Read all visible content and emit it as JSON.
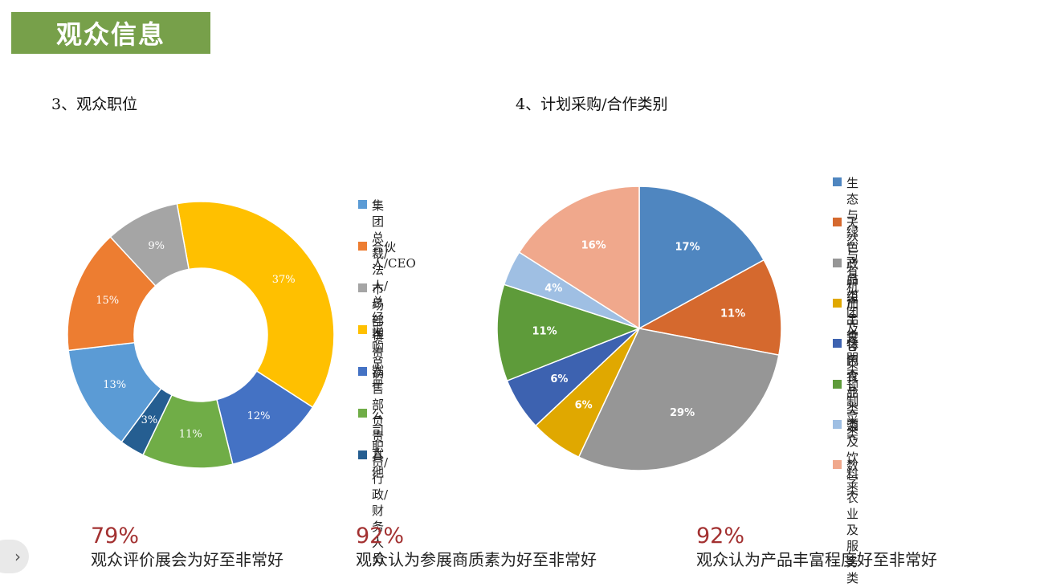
{
  "header": {
    "title": "观众信息"
  },
  "sections": {
    "left_title": "3、观众职位",
    "right_title": "4、计划采购/合作类别"
  },
  "chart_data": [
    {
      "type": "donut",
      "title": "3、观众职位",
      "categories": [
        "集团总裁/法人/总经理",
        "合伙人/CEO",
        "市场部负责人",
        "采购总监",
        "销售部负责人",
        "公司职员/行政/财务人员",
        "其他"
      ],
      "legend_lines": [
        [
          "集团总裁/法人/总",
          "经理"
        ],
        [
          "合伙人/CEO"
        ],
        [
          "市场部负责人"
        ],
        [
          "采购总监"
        ],
        [
          "销售部负责人"
        ],
        [
          "公司职员/行政/财",
          "务人员"
        ],
        [
          "其他"
        ]
      ],
      "values": [
        13,
        15,
        9,
        37,
        12,
        11,
        3
      ],
      "labels": [
        "13%",
        "15%",
        "9%",
        "37%",
        "12%",
        "11%",
        "3%"
      ],
      "colors": [
        "#5b9bd5",
        "#ed7d31",
        "#a5a5a5",
        "#ffc000",
        "#4472c4",
        "#70ad47",
        "#255e91"
      ],
      "draw_order": [
        3,
        4,
        5,
        6,
        0,
        1,
        2
      ],
      "legend_placement": "right"
    },
    {
      "type": "pie",
      "title": "4、计划采购/合作类别",
      "categories": [
        "生态与绿色产品类",
        "天然与有机产品类",
        "政府组团及特色农业类类",
        "加工食品类",
        "休闲食品类",
        "预制菜类",
        "酒及饮料类",
        "数字农业及服务类"
      ],
      "legend_lines": [
        [
          "生态与绿色产品类"
        ],
        [
          "天然与有机产品类"
        ],
        [
          "政府组团及特色农业",
          "类类"
        ],
        [
          "加工食品类"
        ],
        [
          "休闲食品类"
        ],
        [
          "预制菜类"
        ],
        [
          "酒及饮料类"
        ],
        [
          "数字农业及服务类"
        ]
      ],
      "values": [
        17,
        11,
        29,
        6,
        6,
        11,
        4,
        16
      ],
      "labels": [
        "17%",
        "11%",
        "29%",
        "6%",
        "6%",
        "11%",
        "4%",
        "16%"
      ],
      "colors": [
        "#4f86c0",
        "#d5692e",
        "#969696",
        "#e0a800",
        "#3d62b0",
        "#5e9b3a",
        "#9fbfe3",
        "#f0a88c"
      ],
      "legend_placement": "right"
    }
  ],
  "stats": [
    {
      "value": "79%",
      "text": "观众评价展会为好至非常好"
    },
    {
      "value": "92%",
      "text": "观众认为参展商质素为好至非常好"
    },
    {
      "value": "92%",
      "text": "观众认为产品丰富程度好至非常好"
    }
  ],
  "nav": {
    "arrow": "›",
    "icon": "chevron-right-icon"
  }
}
